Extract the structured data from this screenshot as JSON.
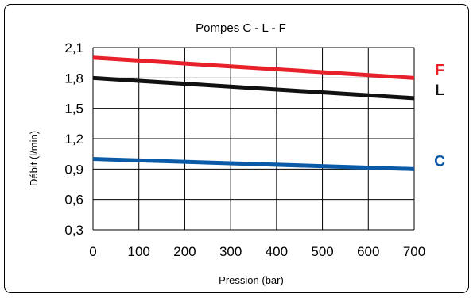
{
  "chart_data": {
    "type": "line",
    "title": "Pompes C - L - F",
    "xlabel": "Pression (bar)",
    "ylabel": "Débit (l/min)",
    "xlim": [
      0,
      700
    ],
    "ylim": [
      0.3,
      2.1
    ],
    "x_ticks": [
      "0",
      "100",
      "200",
      "300",
      "400",
      "500",
      "600",
      "700"
    ],
    "y_ticks": [
      "0,3",
      "0,6",
      "0,9",
      "1,2",
      "1,5",
      "1,8",
      "2,1"
    ],
    "grid": true,
    "series": [
      {
        "name": "F",
        "color": "#e8202a",
        "x": [
          0,
          700
        ],
        "y": [
          2.0,
          1.8
        ]
      },
      {
        "name": "L",
        "color": "#111111",
        "x": [
          0,
          700
        ],
        "y": [
          1.8,
          1.6
        ]
      },
      {
        "name": "C",
        "color": "#0a5aa8",
        "x": [
          0,
          700
        ],
        "y": [
          1.0,
          0.9
        ]
      }
    ]
  }
}
